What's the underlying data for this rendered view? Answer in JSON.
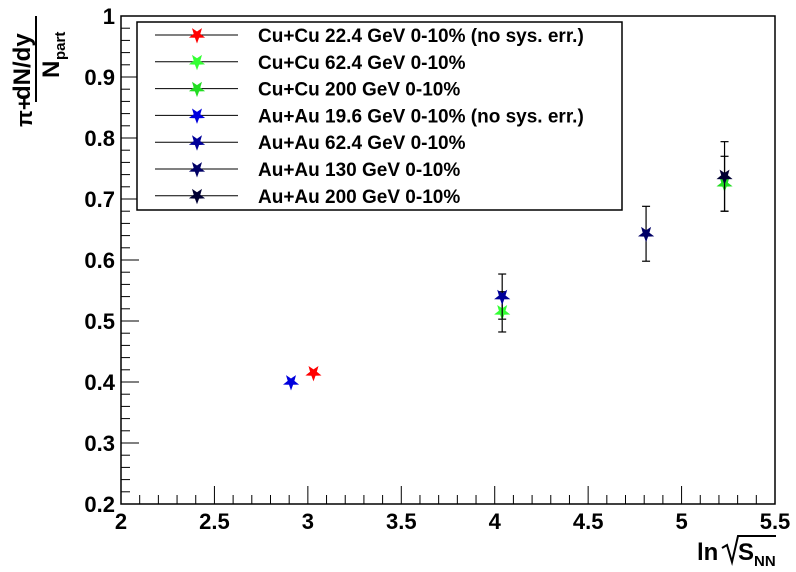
{
  "chart_data": {
    "type": "scatter",
    "title": "",
    "xlabel": "ln√S_NN",
    "xlabel_parts": {
      "ln": "ln",
      "s": "S",
      "sub": "NN"
    },
    "ylabel_parts": {
      "prefix": "π+",
      "num": "dN/dy",
      "den": "N",
      "den_sub": "part"
    },
    "xlim": [
      2,
      5.5
    ],
    "ylim": [
      0.2,
      1.0
    ],
    "xticks": [
      "2",
      "2.5",
      "3",
      "3.5",
      "4",
      "4.5",
      "5",
      "5.5"
    ],
    "yticks": [
      "0.2",
      "0.3",
      "0.4",
      "0.5",
      "0.6",
      "0.7",
      "0.8",
      "0.9",
      "1"
    ],
    "legend_position": "top-left",
    "series": [
      {
        "name": "Cu+Cu 22.4 GeV 0-10% (no sys. err.)",
        "color": "#ff0000",
        "points": [
          {
            "x": 3.03,
            "y": 0.415,
            "err": 0
          }
        ]
      },
      {
        "name": "Cu+Cu 62.4 GeV 0-10%",
        "color": "#33ff33",
        "points": [
          {
            "x": 4.04,
            "y": 0.515,
            "err": 0.033
          }
        ]
      },
      {
        "name": "Cu+Cu 200 GeV 0-10%",
        "color": "#22dd22",
        "points": [
          {
            "x": 5.23,
            "y": 0.725,
            "err": 0.045
          }
        ]
      },
      {
        "name": "Au+Au 19.6 GeV 0-10% (no sys. err.)",
        "color": "#0000dd",
        "points": [
          {
            "x": 2.91,
            "y": 0.4,
            "err": 0
          }
        ]
      },
      {
        "name": "Au+Au 62.4 GeV 0-10%",
        "color": "#000099",
        "points": [
          {
            "x": 4.04,
            "y": 0.54,
            "err": 0.037
          }
        ]
      },
      {
        "name": "Au+Au 130 GeV 0-10%",
        "color": "#000066",
        "points": [
          {
            "x": 4.81,
            "y": 0.643,
            "err": 0.045
          }
        ]
      },
      {
        "name": "Au+Au 200 GeV 0-10%",
        "color": "#000033",
        "points": [
          {
            "x": 5.23,
            "y": 0.737,
            "err": 0.057
          }
        ]
      }
    ]
  }
}
